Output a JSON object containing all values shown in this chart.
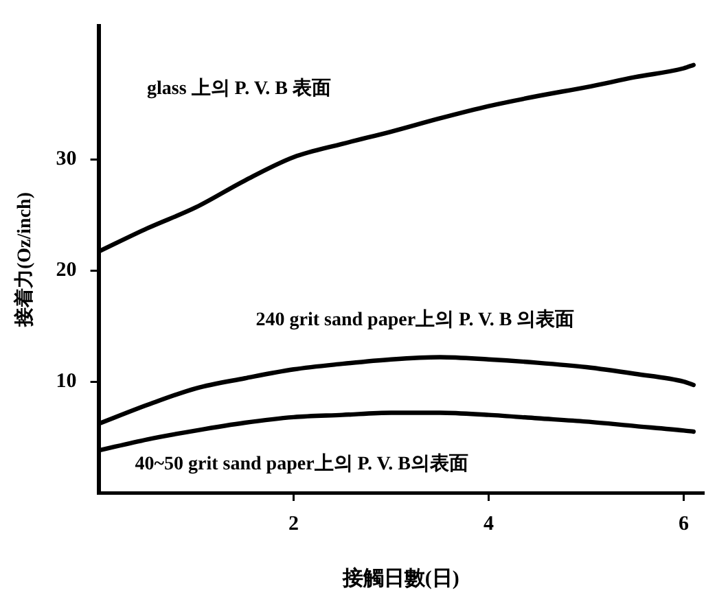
{
  "chart_data": {
    "type": "line",
    "xlabel": "接觸日數(日)",
    "ylabel": "接着力(Oz/inch)",
    "xlim": [
      0,
      6.2
    ],
    "xticks": [
      2,
      4,
      6
    ],
    "ylim": [
      0,
      42
    ],
    "yticks": [
      10,
      20,
      30
    ],
    "marker": "none",
    "line_style": "solid",
    "x": [
      0,
      0.5,
      1,
      1.5,
      2,
      2.5,
      3,
      3.5,
      4,
      4.5,
      5,
      5.5,
      6,
      6.1
    ],
    "series": [
      {
        "name": "glass 上의 P. V. B 表面",
        "color": "#000000",
        "values": [
          21.7,
          23.8,
          25.7,
          28.1,
          30.2,
          31.4,
          32.5,
          33.7,
          34.8,
          35.7,
          36.5,
          37.4,
          38.2,
          38.5
        ]
      },
      {
        "name": "240 grit sand paper上의 P. V. B 의表面",
        "color": "#000000",
        "values": [
          6.2,
          7.9,
          9.4,
          10.3,
          11.1,
          11.6,
          12.0,
          12.2,
          12.0,
          11.7,
          11.3,
          10.7,
          10.0,
          9.7
        ]
      },
      {
        "name": "40~50 grit sand paper上의 P. V. B의表面",
        "color": "#000000",
        "values": [
          3.8,
          4.8,
          5.6,
          6.3,
          6.8,
          7.0,
          7.2,
          7.2,
          7.0,
          6.7,
          6.4,
          6.0,
          5.6,
          5.5
        ]
      }
    ]
  }
}
